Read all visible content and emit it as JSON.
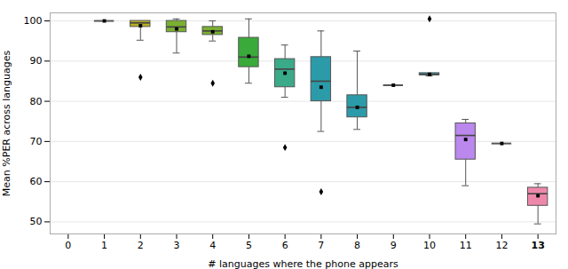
{
  "chart_data": {
    "type": "box",
    "xlabel": "# languages where the phone appears",
    "ylabel": "Mean %PER across languages",
    "x": [
      1,
      2,
      3,
      4,
      5,
      6,
      7,
      8,
      9,
      10,
      11,
      12,
      13
    ],
    "whislo": [
      100.0,
      95.2,
      92.0,
      95.0,
      84.5,
      81.0,
      72.5,
      73.0,
      84.0,
      86.3,
      59.0,
      69.5,
      49.5
    ],
    "q1": [
      100.0,
      98.5,
      97.2,
      96.5,
      88.5,
      83.5,
      80.0,
      76.0,
      84.0,
      86.5,
      65.5,
      69.5,
      54.0
    ],
    "med": [
      100.0,
      99.5,
      98.5,
      97.5,
      91.0,
      88.0,
      85.0,
      78.5,
      84.0,
      86.7,
      71.5,
      69.5,
      57.0
    ],
    "q3": [
      100.0,
      100.0,
      100.0,
      98.5,
      95.8,
      90.5,
      91.0,
      81.5,
      84.0,
      87.0,
      74.5,
      69.5,
      58.5
    ],
    "whishi": [
      100.0,
      100.0,
      100.5,
      100.0,
      100.5,
      94.0,
      97.5,
      92.5,
      84.0,
      87.0,
      75.5,
      69.5,
      59.5
    ],
    "colors": [
      "#b8b020",
      "#b8b020",
      "#7ab030",
      "#7ab030",
      "#3aaa3a",
      "#3aaa88",
      "#2b9baa",
      "#2b9baa",
      "#2b9baa",
      "#2b9baa",
      "#bb88ee",
      "#bb88ee",
      "#ee88aa"
    ],
    "mean": {
      "marker": "square",
      "values": [
        100.0,
        98.8,
        98.0,
        97.3,
        91.2,
        87.0,
        83.5,
        78.5,
        84.0,
        86.7,
        70.5,
        69.5,
        56.5
      ]
    },
    "fliers": {
      "marker": "diamond",
      "values": [
        [],
        [
          86.0
        ],
        [],
        [
          84.5
        ],
        [],
        [
          68.5
        ],
        [
          57.5
        ],
        [],
        [],
        [
          100.5
        ],
        [],
        [],
        []
      ]
    },
    "xlim": [
      -0.5,
      13.5
    ],
    "ylim": [
      47,
      102
    ],
    "xticks": [
      0,
      1,
      2,
      3,
      4,
      5,
      6,
      7,
      8,
      9,
      10,
      11,
      12,
      13
    ],
    "yticks": [
      50,
      60,
      70,
      80,
      90,
      100
    ],
    "grid": true
  }
}
